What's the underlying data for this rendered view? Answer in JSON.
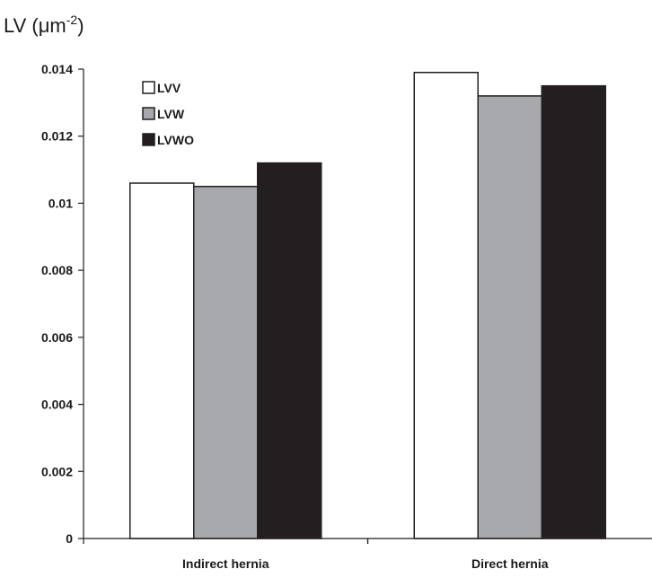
{
  "chart_data": {
    "type": "bar",
    "ylabel": {
      "prefix": "LV (",
      "unit_base": "μm",
      "unit_exp": "-2",
      "suffix": ")"
    },
    "categories": [
      "Indirect hernia",
      "Direct hernia"
    ],
    "series": [
      {
        "name": "LVV",
        "values": [
          0.0106,
          0.0139
        ],
        "color": "#ffffff"
      },
      {
        "name": "LVW",
        "values": [
          0.0105,
          0.0132
        ],
        "color": "#a7a9ac"
      },
      {
        "name": "LVWO",
        "values": [
          0.0112,
          0.0135
        ],
        "color": "#231f20"
      }
    ],
    "ylim": [
      0,
      0.014
    ],
    "yticks": [
      "0",
      "0.002",
      "0.004",
      "0.006",
      "0.008",
      "0.01",
      "0.012",
      "0.014"
    ],
    "ytick_values": [
      0,
      0.002,
      0.004,
      0.006,
      0.008,
      0.01,
      0.012,
      0.014
    ],
    "grid": false,
    "legend_position": "top-left",
    "bar_outline_color": "#231f20"
  }
}
